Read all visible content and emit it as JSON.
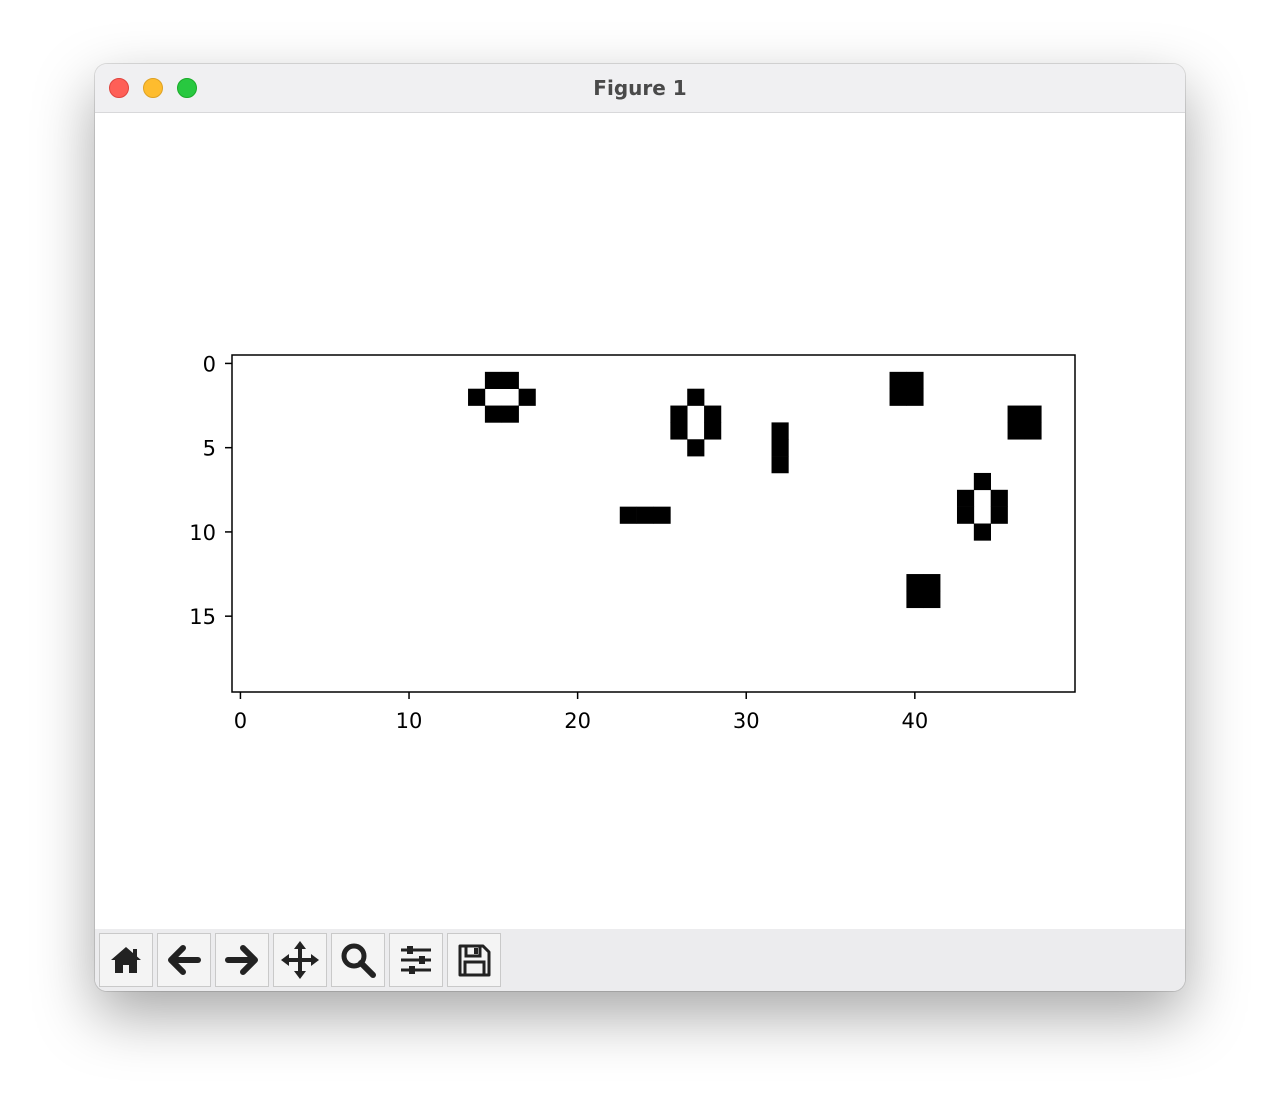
{
  "window": {
    "title": "Figure 1"
  },
  "toolbar": {
    "buttons": [
      {
        "icon": "home-icon",
        "label": "Home"
      },
      {
        "icon": "back-arrow-icon",
        "label": "Back"
      },
      {
        "icon": "forward-arrow-icon",
        "label": "Forward"
      },
      {
        "icon": "pan-icon",
        "label": "Pan"
      },
      {
        "icon": "zoom-icon",
        "label": "Zoom"
      },
      {
        "icon": "subplots-icon",
        "label": "Configure subplots"
      },
      {
        "icon": "save-icon",
        "label": "Save"
      }
    ]
  },
  "chart_data": {
    "type": "heatmap",
    "colormap": "binary",
    "colors": {
      "on": "#000000",
      "off": "#ffffff"
    },
    "rows": 20,
    "cols": 50,
    "xlim": [
      -0.5,
      49.5
    ],
    "ylim": [
      19.5,
      -0.5
    ],
    "xticks": [
      0,
      10,
      20,
      30,
      40
    ],
    "yticks": [
      0,
      5,
      10,
      15
    ],
    "grid": false,
    "filled_cells": [
      [
        1,
        15
      ],
      [
        1,
        16
      ],
      [
        2,
        14
      ],
      [
        2,
        17
      ],
      [
        3,
        15
      ],
      [
        3,
        16
      ],
      [
        1,
        39
      ],
      [
        1,
        40
      ],
      [
        2,
        39
      ],
      [
        2,
        40
      ],
      [
        2,
        27
      ],
      [
        3,
        26
      ],
      [
        3,
        28
      ],
      [
        4,
        26
      ],
      [
        4,
        28
      ],
      [
        5,
        27
      ],
      [
        3,
        46
      ],
      [
        3,
        47
      ],
      [
        4,
        46
      ],
      [
        4,
        47
      ],
      [
        4,
        32
      ],
      [
        5,
        32
      ],
      [
        6,
        32
      ],
      [
        7,
        44
      ],
      [
        8,
        43
      ],
      [
        8,
        45
      ],
      [
        9,
        43
      ],
      [
        9,
        45
      ],
      [
        10,
        44
      ],
      [
        9,
        23
      ],
      [
        9,
        24
      ],
      [
        9,
        25
      ],
      [
        13,
        40
      ],
      [
        13,
        41
      ],
      [
        14,
        40
      ],
      [
        14,
        41
      ]
    ]
  }
}
